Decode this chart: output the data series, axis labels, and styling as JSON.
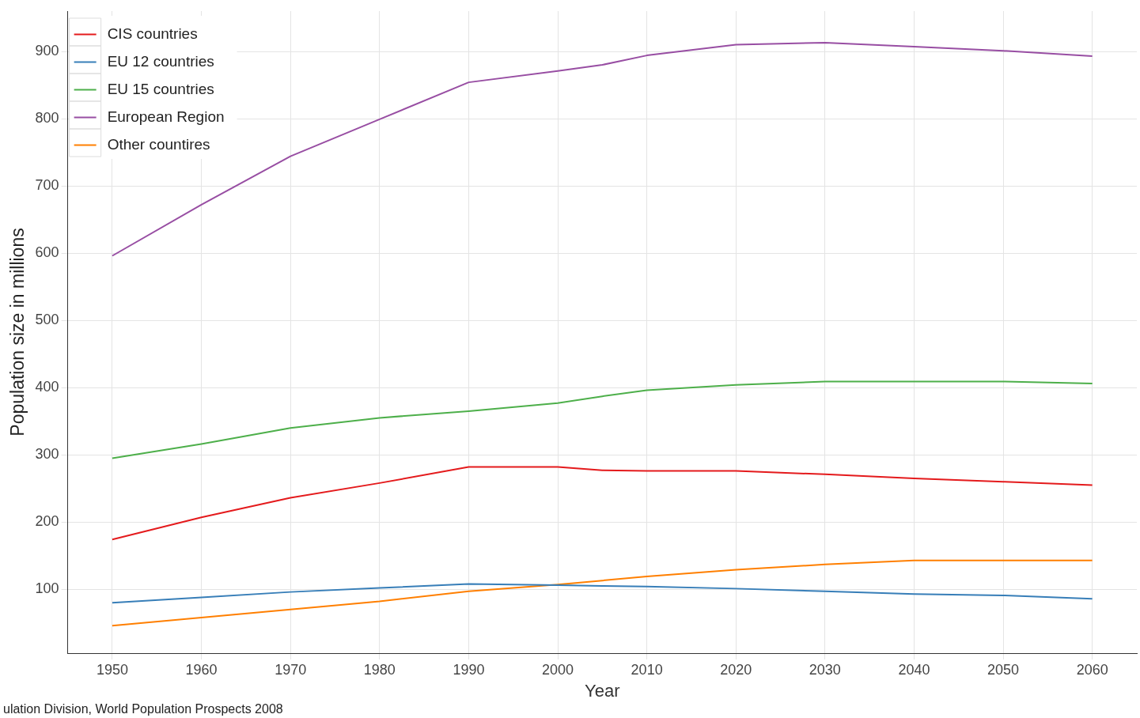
{
  "chart_data": {
    "type": "line",
    "xlabel": "Year",
    "ylabel": "Population size in millions",
    "annotations": [
      "ulation Division, World Population Prospects 2008"
    ],
    "x": [
      1950,
      1960,
      1970,
      1980,
      1990,
      2000,
      2005,
      2010,
      2020,
      2030,
      2040,
      2050,
      2060
    ],
    "series": [
      {
        "name": "CIS countries",
        "color": "#e41a1c",
        "values": [
          174,
          207,
          236,
          258,
          282,
          282,
          277,
          276,
          276,
          271,
          265,
          260,
          255
        ]
      },
      {
        "name": "EU 12 countries",
        "color": "#377eb8",
        "values": [
          80,
          88,
          96,
          102,
          108,
          106,
          105,
          104,
          101,
          97,
          93,
          91,
          86
        ]
      },
      {
        "name": "EU 15 countries",
        "color": "#4daf4a",
        "values": [
          295,
          316,
          340,
          355,
          365,
          377,
          387,
          396,
          404,
          409,
          409,
          409,
          406
        ]
      },
      {
        "name": "European Region",
        "color": "#984ea3",
        "values": [
          596,
          672,
          744,
          799,
          854,
          871,
          880,
          894,
          910,
          913,
          907,
          901,
          893
        ]
      },
      {
        "name": "Other countires",
        "color": "#ff7f00",
        "values": [
          46,
          58,
          70,
          82,
          97,
          107,
          113,
          119,
          129,
          137,
          143,
          143,
          143
        ]
      }
    ],
    "xlim": [
      1945,
      2065
    ],
    "xticks": [
      1950,
      1960,
      1970,
      1980,
      1990,
      2000,
      2010,
      2020,
      2030,
      2040,
      2050,
      2060
    ],
    "ylim": [
      5,
      960
    ],
    "yticks": [
      100,
      200,
      300,
      400,
      500,
      600,
      700,
      800,
      900
    ],
    "grid": true,
    "legend": "top left",
    "marker": "none",
    "line_style": "solid"
  }
}
